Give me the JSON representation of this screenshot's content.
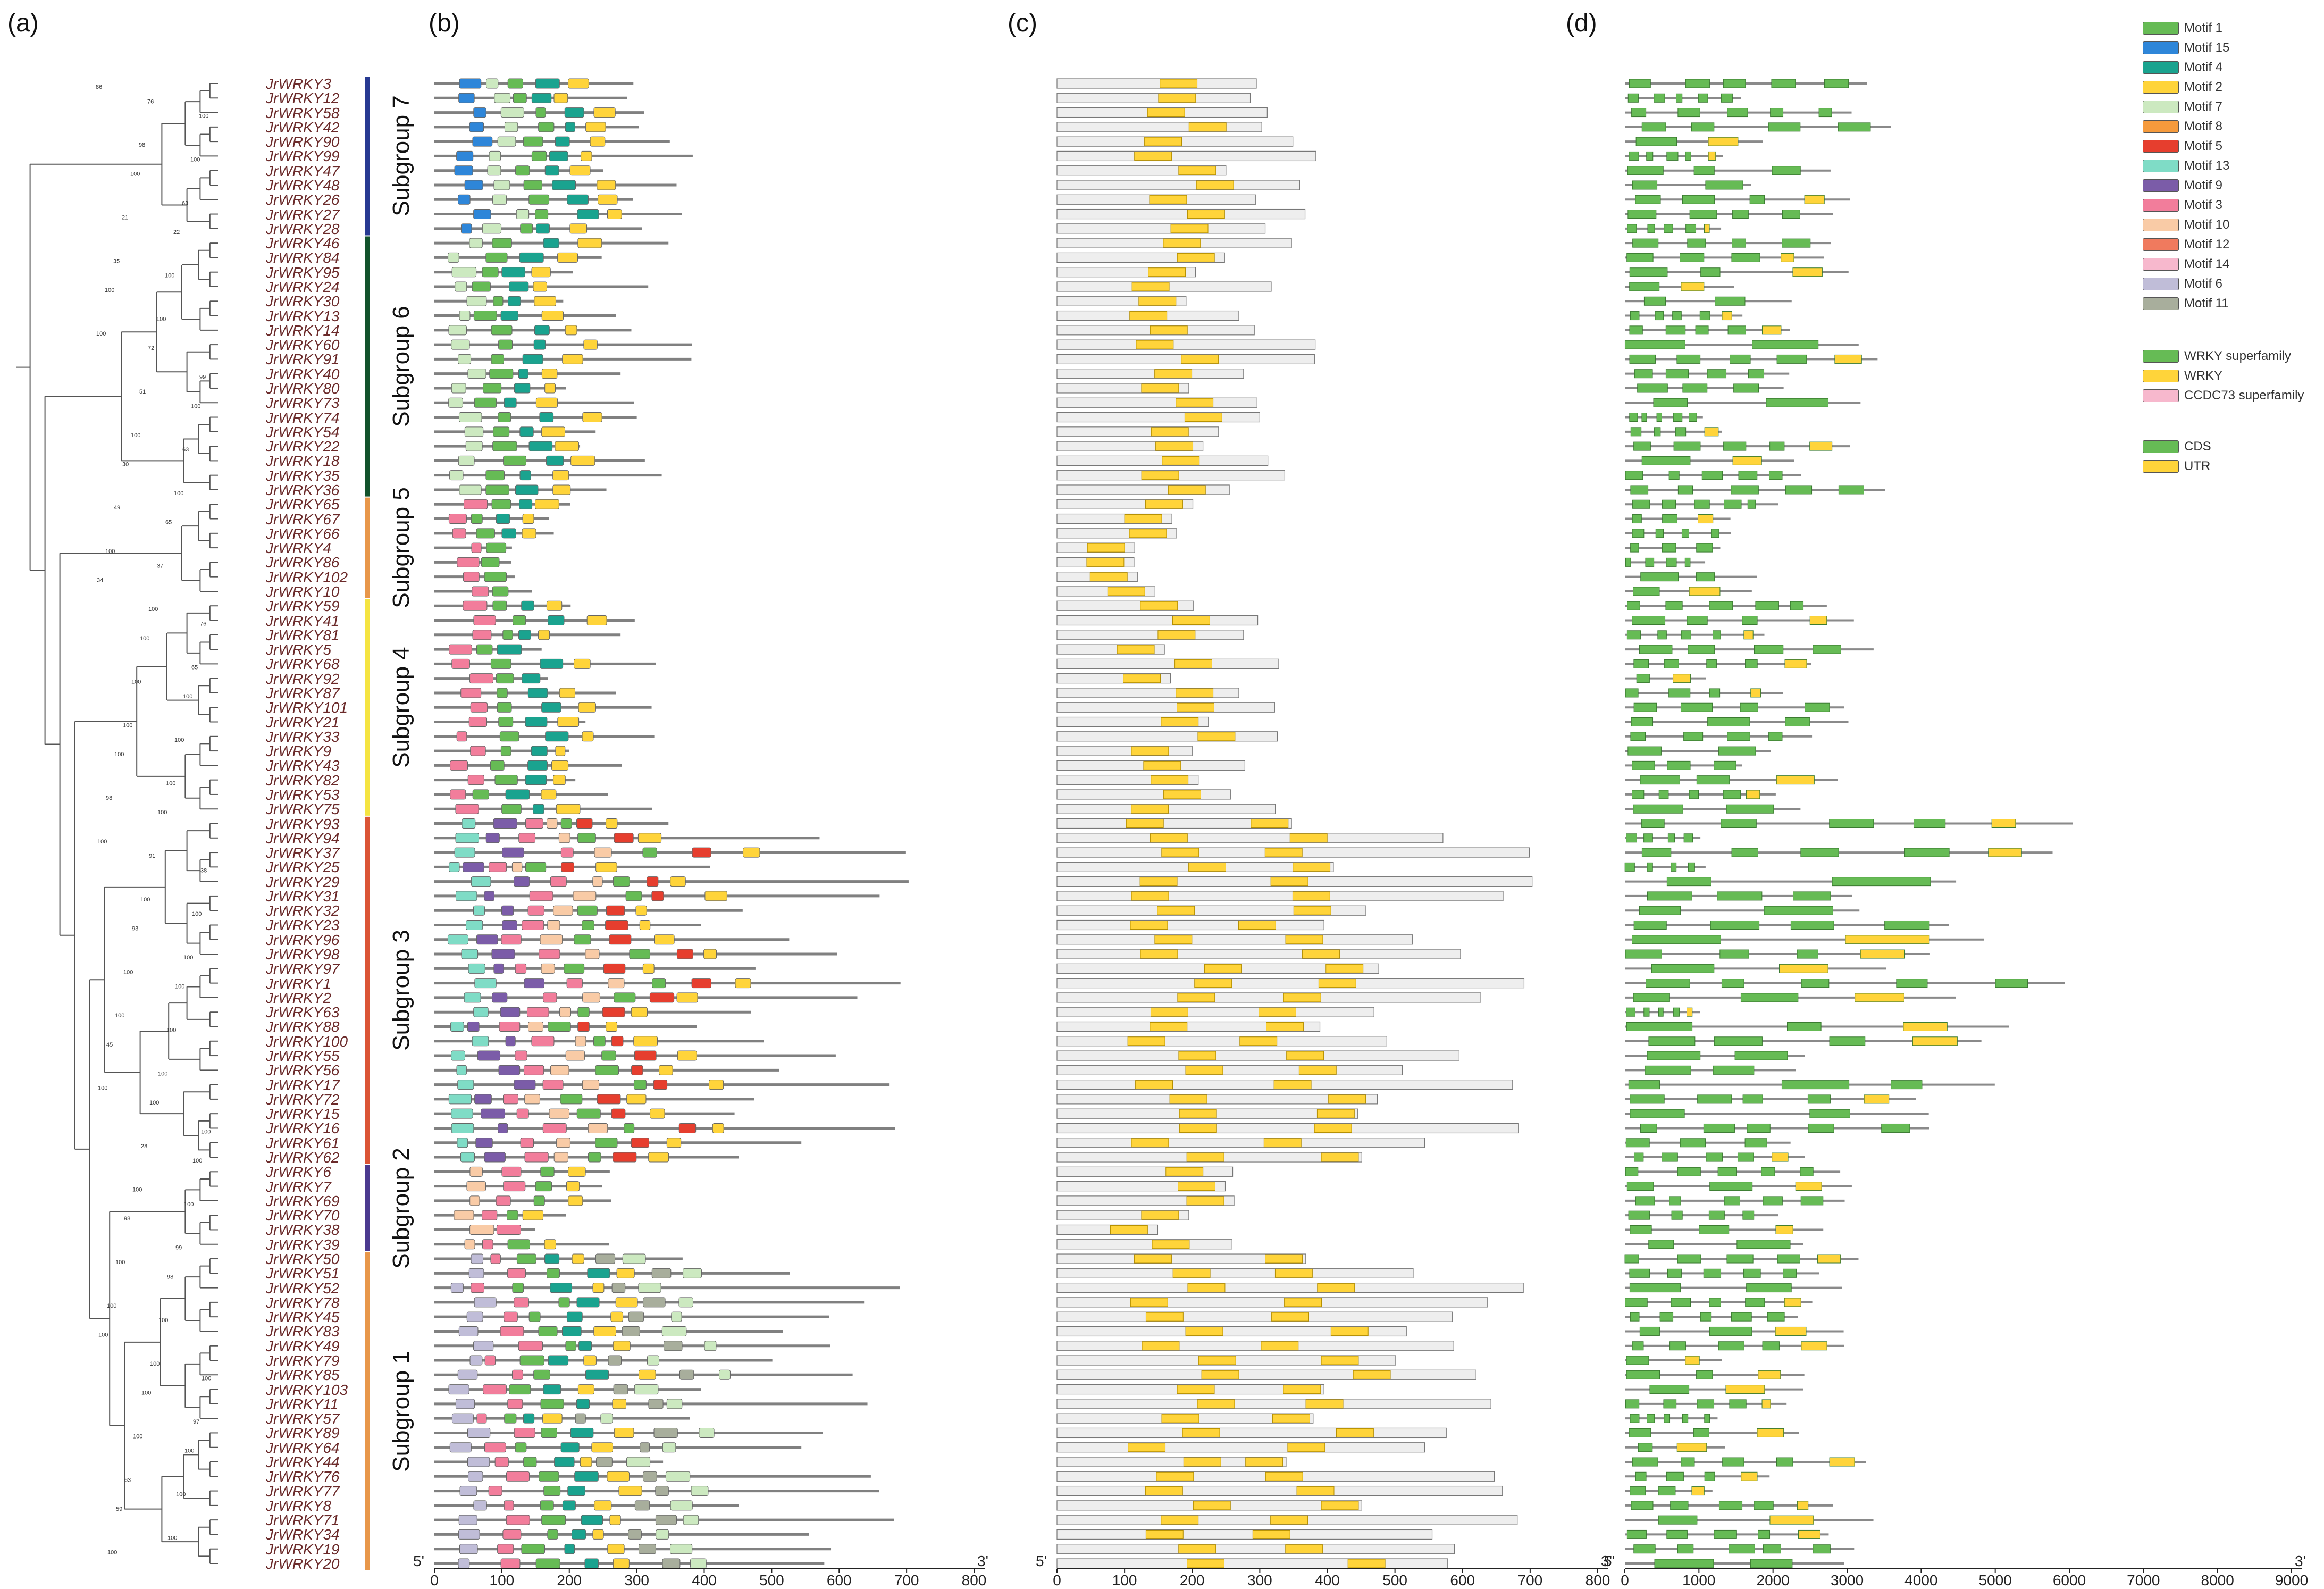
{
  "panels": {
    "a": "(a)",
    "b": "(b)",
    "c": "(c)",
    "d": "(d)"
  },
  "genes": [
    "JrWRKY3",
    "JrWRKY12",
    "JrWRKY58",
    "JrWRKY42",
    "JrWRKY90",
    "JrWRKY99",
    "JrWRKY47",
    "JrWRKY48",
    "JrWRKY26",
    "JrWRKY27",
    "JrWRKY28",
    "JrWRKY46",
    "JrWRKY84",
    "JrWRKY95",
    "JrWRKY24",
    "JrWRKY30",
    "JrWRKY13",
    "JrWRKY14",
    "JrWRKY60",
    "JrWRKY91",
    "JrWRKY40",
    "JrWRKY80",
    "JrWRKY73",
    "JrWRKY74",
    "JrWRKY54",
    "JrWRKY22",
    "JrWRKY18",
    "JrWRKY35",
    "JrWRKY36",
    "JrWRKY65",
    "JrWRKY67",
    "JrWRKY66",
    "JrWRKY4",
    "JrWRKY86",
    "JrWRKY102",
    "JrWRKY10",
    "JrWRKY59",
    "JrWRKY41",
    "JrWRKY81",
    "JrWRKY5",
    "JrWRKY68",
    "JrWRKY92",
    "JrWRKY87",
    "JrWRKY101",
    "JrWRKY21",
    "JrWRKY33",
    "JrWRKY9",
    "JrWRKY43",
    "JrWRKY82",
    "JrWRKY53",
    "JrWRKY75",
    "JrWRKY93",
    "JrWRKY94",
    "JrWRKY37",
    "JrWRKY25",
    "JrWRKY29",
    "JrWRKY31",
    "JrWRKY32",
    "JrWRKY23",
    "JrWRKY96",
    "JrWRKY98",
    "JrWRKY97",
    "JrWRKY1",
    "JrWRKY2",
    "JrWRKY63",
    "JrWRKY88",
    "JrWRKY100",
    "JrWRKY55",
    "JrWRKY56",
    "JrWRKY17",
    "JrWRKY72",
    "JrWRKY15",
    "JrWRKY16",
    "JrWRKY61",
    "JrWRKY62",
    "JrWRKY6",
    "JrWRKY7",
    "JrWRKY69",
    "JrWRKY70",
    "JrWRKY38",
    "JrWRKY39",
    "JrWRKY50",
    "JrWRKY51",
    "JrWRKY52",
    "JrWRKY78",
    "JrWRKY45",
    "JrWRKY83",
    "JrWRKY49",
    "JrWRKY79",
    "JrWRKY85",
    "JrWRKY103",
    "JrWRKY11",
    "JrWRKY57",
    "JrWRKY89",
    "JrWRKY64",
    "JrWRKY44",
    "JrWRKY76",
    "JrWRKY77",
    "JrWRKY8",
    "JrWRKY71",
    "JrWRKY34",
    "JrWRKY19",
    "JrWRKY20"
  ],
  "bootstrap": [
    "86",
    "76",
    "100",
    "98",
    "100",
    "100",
    "63",
    "21",
    "22",
    "35",
    "100",
    "100",
    "100",
    "100",
    "72",
    "99",
    "51",
    "100",
    "100",
    "63",
    "30",
    "100",
    "49",
    "65",
    "100",
    "37",
    "34",
    "100",
    "76",
    "100",
    "65",
    "100",
    "100",
    "100",
    "100",
    "100",
    "100",
    "98",
    "100",
    "100",
    "91",
    "38",
    "100",
    "100",
    "93",
    "100",
    "100",
    "100",
    "100",
    "100",
    "45",
    "100",
    "100",
    "100",
    "100",
    "28",
    "100",
    "100",
    "100",
    "98",
    "99",
    "100",
    "98",
    "100",
    "100",
    "100",
    "100",
    "100",
    "100",
    "97",
    "100",
    "100",
    "63",
    "100",
    "59",
    "100",
    "100"
  ],
  "subgroups": [
    {
      "label": "Subgroup 7",
      "color": "#283a92",
      "first": 0,
      "last": 10
    },
    {
      "label": "Subgroup 6",
      "color": "#12532c",
      "first": 11,
      "last": 28
    },
    {
      "label": "Subgroup 5",
      "color": "#e8974a",
      "first": 29,
      "last": 35
    },
    {
      "label": "Subgroup 4",
      "color": "#f5e441",
      "first": 36,
      "last": 50
    },
    {
      "label": "Subgroup 3",
      "color": "#db5536",
      "first": 51,
      "last": 74
    },
    {
      "label": "Subgroup 2",
      "color": "#4b3a8f",
      "first": 75,
      "last": 80
    },
    {
      "label": "Subgroup 1",
      "color": "#e8974a",
      "first": 81,
      "last": 102
    }
  ],
  "motif_legend": [
    {
      "label": "Motif 1",
      "color": "#66bb55"
    },
    {
      "label": "Motif 15",
      "color": "#2e86d9"
    },
    {
      "label": "Motif 4",
      "color": "#1aa38f"
    },
    {
      "label": "Motif 2",
      "color": "#ffd43a"
    },
    {
      "label": "Motif 7",
      "color": "#cce9c0"
    },
    {
      "label": "Motif 8",
      "color": "#f59a3c"
    },
    {
      "label": "Motif 5",
      "color": "#e63e2e"
    },
    {
      "label": "Motif 13",
      "color": "#7fdcc6"
    },
    {
      "label": "Motif 9",
      "color": "#7b5ca8"
    },
    {
      "label": "Motif 3",
      "color": "#f27d9b"
    },
    {
      "label": "Motif 10",
      "color": "#f9cba6"
    },
    {
      "label": "Motif 12",
      "color": "#f07a5e"
    },
    {
      "label": "Motif 14",
      "color": "#f7b8cd"
    },
    {
      "label": "Motif 6",
      "color": "#c0bdd8"
    },
    {
      "label": "Motif 11",
      "color": "#a8ae9c"
    }
  ],
  "domain_legend": [
    {
      "label": "WRKY superfamily",
      "color": "#66bb55"
    },
    {
      "label": "WRKY",
      "color": "#ffd43a"
    },
    {
      "label": "CCDC73 superfamily",
      "color": "#f7b8cd"
    }
  ],
  "structure_legend": [
    {
      "label": "CDS",
      "color": "#66bb55"
    },
    {
      "label": "UTR",
      "color": "#ffd43a"
    }
  ],
  "axis_b": {
    "ticks": [
      "0",
      "100",
      "200",
      "300",
      "400",
      "500",
      "600",
      "700",
      "800"
    ],
    "start": "5'",
    "end": "3'"
  },
  "axis_c": {
    "ticks": [
      "0",
      "100",
      "200",
      "300",
      "400",
      "500",
      "600",
      "700",
      "800"
    ],
    "start": "5'",
    "end": "3'"
  },
  "axis_d": {
    "ticks": [
      "0",
      "1000",
      "2000",
      "3000",
      "4000",
      "5000",
      "6000",
      "7000",
      "8000",
      "9000"
    ],
    "start": "5'",
    "end": "3'"
  }
}
